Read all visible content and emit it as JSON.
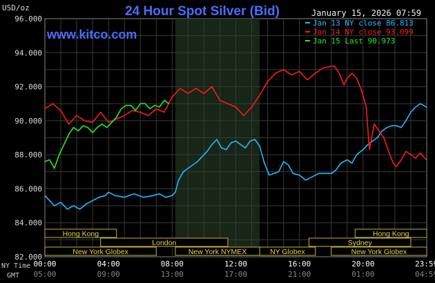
{
  "chart_data": {
    "type": "line",
    "title": "24 Hour Spot Silver (Bid)",
    "timestamp": "January 15, 2026 07:59",
    "watermark": "www.kitco.com",
    "y_unit_label": "USD/oz",
    "ylim": [
      82000,
      96000
    ],
    "y_ticks": [
      "96.000",
      "94.000",
      "92.000",
      "90.000",
      "88.000",
      "86.000",
      "84.000",
      "82.000"
    ],
    "y_tick_values": [
      96000,
      94000,
      92000,
      90000,
      88000,
      86000,
      84000,
      82000
    ],
    "x_row_labels": [
      "NY Time",
      "GMT"
    ],
    "x_ticks_ny": [
      "00:00",
      "04:00",
      "08:00",
      "12:00",
      "16:00",
      "20:00",
      "23:59"
    ],
    "x_ticks_gmt": [
      "05:00",
      "09:00",
      "13:00",
      "17:00",
      "21:00",
      "01:00",
      "04:59"
    ],
    "x_tick_hours": [
      0,
      4,
      8,
      12,
      16,
      20,
      23.98
    ],
    "xlim": [
      0,
      24
    ],
    "shaded_session": {
      "start_hour": 8.2,
      "end_hour": 13.5
    },
    "market_sessions": [
      {
        "label": "Hong Kong",
        "start": 0.0,
        "end": 4.5,
        "row": 0
      },
      {
        "label": "Hong Kong",
        "start": 19.5,
        "end": 24.0,
        "row": 0
      },
      {
        "label": "London",
        "start": 3.5,
        "end": 11.5,
        "row": 1
      },
      {
        "label": "Sydney",
        "start": 16.6,
        "end": 23.0,
        "row": 1
      },
      {
        "label": "New York Globex",
        "start": 0.0,
        "end": 7.0,
        "row": 2
      },
      {
        "label": "New York NYMEX",
        "start": 8.2,
        "end": 13.5,
        "row": 2
      },
      {
        "label": "NY Globex",
        "start": 13.5,
        "end": 17.0,
        "row": 2
      },
      {
        "label": "New York Globex",
        "start": 18.0,
        "end": 24.0,
        "row": 2
      }
    ],
    "grid": true,
    "legend_position": "top-right",
    "series": [
      {
        "name": "Jan 13 NY close 86.813",
        "color": "#22bbff",
        "x": [
          0,
          0.3,
          0.6,
          1,
          1.4,
          1.8,
          2.2,
          2.6,
          3,
          3.4,
          3.8,
          4,
          4.4,
          5,
          5.6,
          6.2,
          6.8,
          7.2,
          7.6,
          8,
          8.2,
          8.4,
          8.7,
          9,
          9.3,
          9.6,
          9.9,
          10.2,
          10.5,
          10.8,
          11.1,
          11.4,
          11.7,
          12,
          12.3,
          12.6,
          12.9,
          13.2,
          13.5,
          13.8,
          14.1,
          14.4,
          14.7,
          15,
          15.3,
          15.6,
          16,
          16.4,
          16.8,
          17.2,
          17.6,
          18,
          18.3,
          18.6,
          19,
          19.3,
          19.6,
          20,
          20.3,
          20.6,
          20.9,
          21.2,
          21.5,
          21.8,
          22.1,
          22.4,
          22.7,
          23,
          23.3,
          23.6,
          23.98
        ],
        "values": [
          85600,
          85300,
          85000,
          85200,
          84800,
          85000,
          84800,
          85100,
          85300,
          85500,
          85600,
          85800,
          85600,
          85500,
          85700,
          85500,
          85600,
          85700,
          85500,
          85600,
          85800,
          86500,
          87000,
          87200,
          87400,
          87600,
          87900,
          88200,
          88600,
          88900,
          88400,
          88300,
          88700,
          88800,
          88600,
          88400,
          88800,
          88900,
          88500,
          87500,
          86800,
          86900,
          87000,
          87600,
          87400,
          86900,
          86800,
          86500,
          86700,
          86900,
          86900,
          86900,
          87100,
          87500,
          87700,
          87500,
          88000,
          88300,
          88600,
          88800,
          89000,
          89400,
          89600,
          89700,
          89700,
          89600,
          90000,
          90500,
          90800,
          91000,
          90800
        ]
      },
      {
        "name": "Jan 14 NY close 93.099",
        "color": "#ff1a1a",
        "x": [
          0,
          0.5,
          1,
          1.5,
          2,
          2.5,
          3,
          3.5,
          4,
          4.5,
          5,
          5.5,
          6,
          6.5,
          7,
          7.5,
          8,
          8.5,
          9,
          9.5,
          10,
          10.5,
          11,
          11.5,
          12,
          12.5,
          13,
          13.5,
          14,
          14.5,
          15,
          15.5,
          16,
          16.5,
          17,
          17.5,
          18,
          18.2,
          18.5,
          18.8,
          19,
          19.3,
          19.6,
          19.9,
          20.2,
          20.4,
          20.7,
          21,
          21.3,
          21.6,
          21.9,
          22.1,
          22.4,
          22.7,
          23,
          23.3,
          23.6,
          23.98
        ],
        "values": [
          90700,
          91000,
          90600,
          89800,
          90300,
          90000,
          89900,
          90500,
          89900,
          90100,
          90300,
          90600,
          90500,
          90300,
          90700,
          90500,
          91400,
          91900,
          91600,
          91900,
          91600,
          92000,
          91200,
          91000,
          90800,
          90300,
          90800,
          91500,
          92300,
          92800,
          93000,
          92700,
          92900,
          92400,
          92800,
          93100,
          93200,
          93200,
          92800,
          92100,
          92500,
          92800,
          92500,
          91800,
          90800,
          88300,
          89800,
          89400,
          89000,
          88200,
          87500,
          87300,
          87700,
          88200,
          88000,
          87800,
          88100,
          87700
        ]
      },
      {
        "name": "Jan 15 Last 90.973",
        "color": "#22ee22",
        "x": [
          0,
          0.3,
          0.6,
          0.9,
          1.2,
          1.5,
          1.8,
          2.1,
          2.4,
          2.7,
          3,
          3.3,
          3.6,
          3.9,
          4.2,
          4.5,
          4.8,
          5.1,
          5.4,
          5.7,
          6,
          6.3,
          6.6,
          6.9,
          7.2,
          7.5,
          7.8
        ],
        "values": [
          87600,
          87700,
          87200,
          88000,
          88600,
          89200,
          89600,
          89400,
          89700,
          89600,
          89300,
          89600,
          89800,
          89600,
          89900,
          90200,
          90700,
          90900,
          90900,
          90600,
          91000,
          91000,
          90700,
          90900,
          90800,
          91200,
          91000
        ]
      }
    ]
  }
}
